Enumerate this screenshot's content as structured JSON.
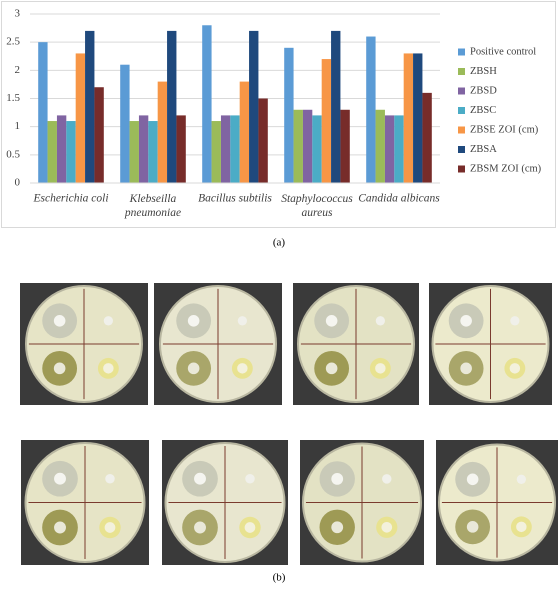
{
  "chart_data": {
    "type": "bar",
    "categories": [
      "Escherichia coli",
      "Klebseilla pneumoniae",
      "Bacillus subtilis",
      "Staphylococcus aureus",
      "Candida albicans"
    ],
    "series": [
      {
        "name": "Positive control",
        "color": "#5b9bd5",
        "values": [
          2.5,
          2.1,
          2.8,
          2.4,
          2.6
        ]
      },
      {
        "name": "ZBSH",
        "color": "#9bbb59",
        "values": [
          1.1,
          1.1,
          1.1,
          1.3,
          1.3
        ]
      },
      {
        "name": "ZBSD",
        "color": "#8064a2",
        "values": [
          1.2,
          1.2,
          1.2,
          1.3,
          1.2
        ]
      },
      {
        "name": "ZBSC",
        "color": "#4bacc6",
        "values": [
          1.1,
          1.1,
          1.2,
          1.2,
          1.2
        ]
      },
      {
        "name": "ZBSE ZOI (cm)",
        "color": "#f79646",
        "values": [
          2.3,
          1.8,
          1.8,
          2.2,
          2.3
        ]
      },
      {
        "name": "ZBSA",
        "color": "#1f497d",
        "values": [
          2.7,
          2.7,
          2.7,
          2.7,
          2.3
        ]
      },
      {
        "name": "ZBSM ZOI (cm)",
        "color": "#772c2a",
        "values": [
          1.7,
          1.2,
          1.5,
          1.3,
          1.6
        ]
      }
    ],
    "ylim": [
      0,
      3
    ],
    "yticks": [
      0,
      0.5,
      1,
      1.5,
      2,
      2.5,
      3
    ],
    "grid": true,
    "legend": "right"
  },
  "captions": {
    "chart": "(a)",
    "photos": "(b)"
  }
}
